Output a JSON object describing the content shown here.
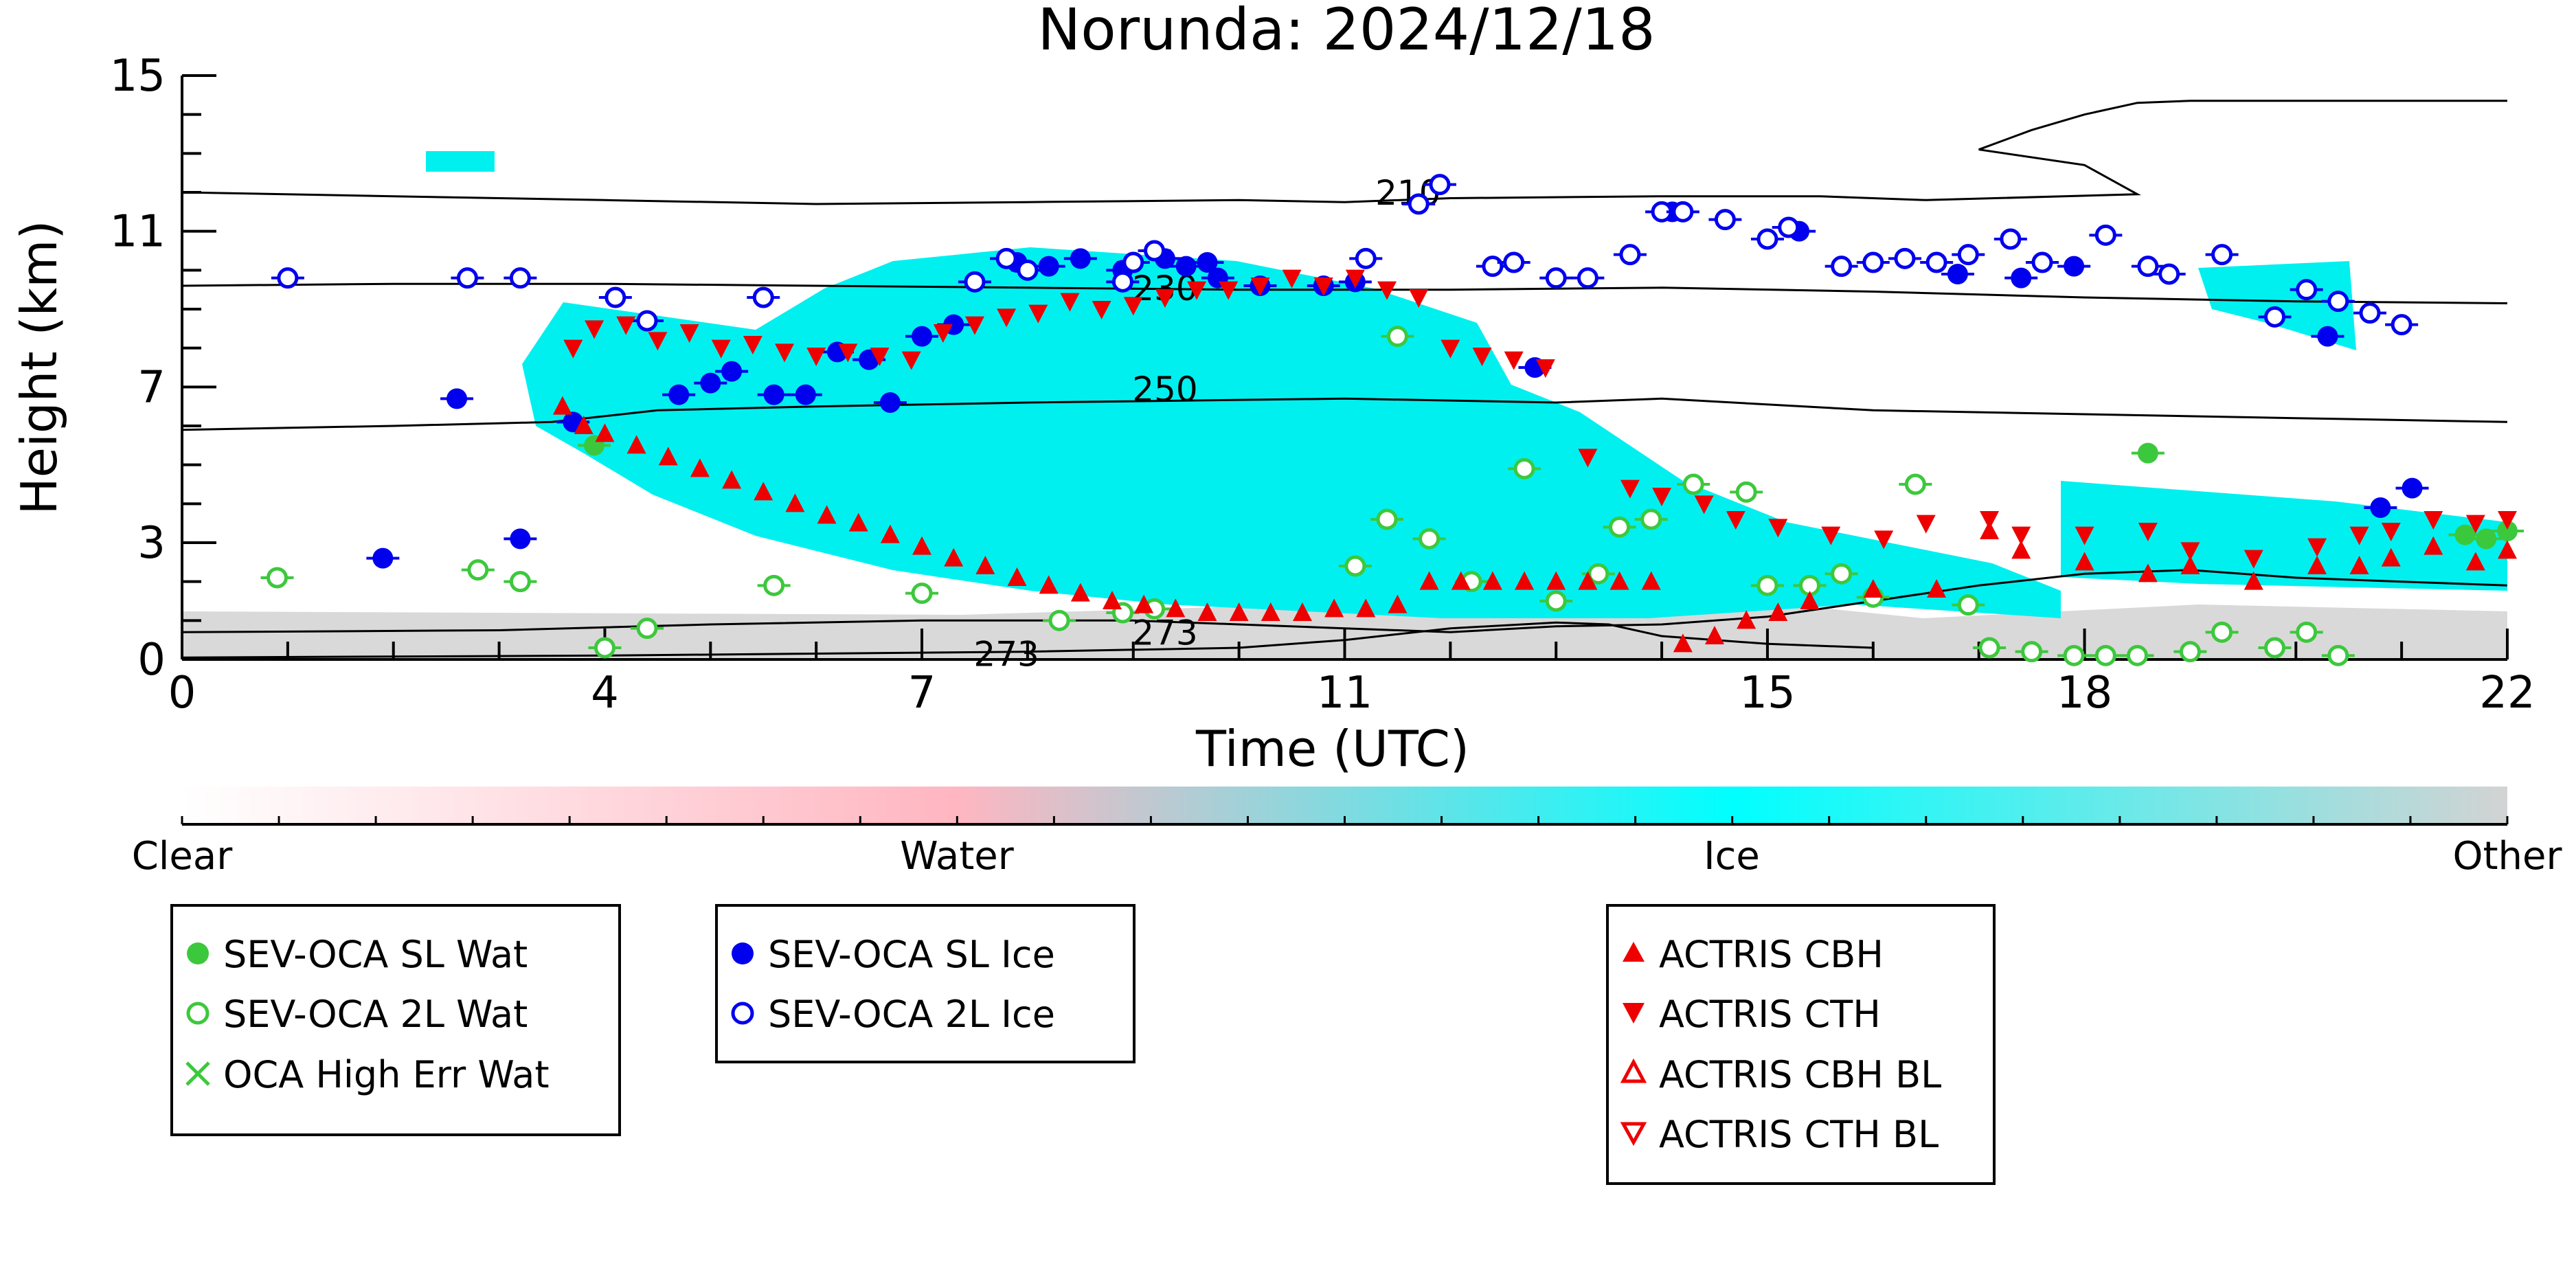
{
  "chart_data": {
    "type": "scatter",
    "title": "Norunda: 2024/12/18",
    "xlabel": "Time (UTC)",
    "ylabel": "Height (km)",
    "xlim": [
      0,
      22
    ],
    "ylim": [
      0,
      15
    ],
    "x_ticks": [
      0,
      4,
      7,
      11,
      15,
      18,
      22
    ],
    "y_ticks": [
      0,
      3,
      7,
      11,
      15
    ],
    "colorbar": {
      "labels": [
        "Clear",
        "Water",
        "Ice",
        "Other"
      ],
      "colors": [
        "#ffffff",
        "#ffb6c1",
        "#00ffff",
        "#d3d3d3"
      ]
    },
    "contours": [
      {
        "label": "210",
        "points": [
          [
            0,
            12.0
          ],
          [
            2,
            11.9
          ],
          [
            4,
            11.8
          ],
          [
            6,
            11.7
          ],
          [
            8,
            11.75
          ],
          [
            10,
            11.8
          ],
          [
            11,
            11.75
          ],
          [
            12,
            11.85
          ],
          [
            14,
            11.9
          ],
          [
            15.5,
            11.9
          ],
          [
            16.5,
            11.8
          ],
          [
            18.5,
            11.95
          ],
          [
            18,
            12.7
          ],
          [
            17,
            13.1
          ],
          [
            17.5,
            13.6
          ],
          [
            18,
            14.0
          ],
          [
            18.5,
            14.3
          ],
          [
            19,
            14.35
          ],
          [
            22,
            14.35
          ]
        ]
      },
      {
        "label": "230",
        "points": [
          [
            0,
            9.6
          ],
          [
            2,
            9.65
          ],
          [
            4,
            9.65
          ],
          [
            6,
            9.6
          ],
          [
            8,
            9.55
          ],
          [
            10,
            9.5
          ],
          [
            12,
            9.5
          ],
          [
            14,
            9.55
          ],
          [
            16,
            9.45
          ],
          [
            18,
            9.3
          ],
          [
            20,
            9.2
          ],
          [
            22,
            9.15
          ]
        ]
      },
      {
        "label": "250",
        "points": [
          [
            0,
            5.9
          ],
          [
            2,
            6.0
          ],
          [
            3.5,
            6.1
          ],
          [
            4.5,
            6.4
          ],
          [
            6,
            6.5
          ],
          [
            8,
            6.6
          ],
          [
            11,
            6.7
          ],
          [
            13,
            6.6
          ],
          [
            14,
            6.7
          ],
          [
            16,
            6.4
          ],
          [
            18,
            6.3
          ],
          [
            20,
            6.2
          ],
          [
            22,
            6.1
          ]
        ]
      },
      {
        "label": "273",
        "points": [
          [
            0,
            0.7
          ],
          [
            3,
            0.75
          ],
          [
            5,
            0.9
          ],
          [
            7,
            1.0
          ],
          [
            9,
            1.0
          ],
          [
            10,
            0.9
          ],
          [
            11,
            0.8
          ],
          [
            12,
            0.7
          ],
          [
            13,
            0.85
          ],
          [
            14,
            0.9
          ],
          [
            15,
            1.1
          ],
          [
            16,
            1.5
          ],
          [
            17,
            1.9
          ],
          [
            18,
            2.2
          ],
          [
            19,
            2.3
          ],
          [
            20,
            2.1
          ],
          [
            21,
            2.0
          ],
          [
            22,
            1.9
          ]
        ]
      },
      {
        "label": "273",
        "points": [
          [
            0,
            0.05
          ],
          [
            4,
            0.1
          ],
          [
            6,
            0.15
          ],
          [
            8,
            0.2
          ],
          [
            10,
            0.3
          ],
          [
            11,
            0.5
          ],
          [
            12,
            0.8
          ],
          [
            13,
            0.95
          ],
          [
            13.5,
            0.9
          ],
          [
            14,
            0.6
          ],
          [
            15,
            0.4
          ],
          [
            16,
            0.3
          ]
        ]
      }
    ],
    "series": [
      {
        "name": "SEV-OCA SL Wat",
        "marker": "filled-circle",
        "color": "#3cc83c",
        "points": [
          [
            3.9,
            5.5
          ],
          [
            18.6,
            5.3
          ],
          [
            21.6,
            3.2
          ],
          [
            21.8,
            3.1
          ],
          [
            22.0,
            3.3
          ]
        ]
      },
      {
        "name": "SEV-OCA 2L Wat",
        "marker": "open-circle",
        "color": "#3cc83c",
        "points": [
          [
            0.9,
            2.1
          ],
          [
            2.8,
            2.3
          ],
          [
            3.2,
            2.0
          ],
          [
            4.0,
            0.3
          ],
          [
            4.4,
            0.8
          ],
          [
            5.6,
            1.9
          ],
          [
            7.0,
            1.7
          ],
          [
            8.3,
            1.0
          ],
          [
            8.9,
            1.2
          ],
          [
            9.2,
            1.3
          ],
          [
            11.1,
            2.4
          ],
          [
            11.4,
            3.6
          ],
          [
            11.5,
            8.3
          ],
          [
            11.8,
            3.1
          ],
          [
            12.2,
            2.0
          ],
          [
            12.7,
            4.9
          ],
          [
            13.0,
            1.5
          ],
          [
            13.4,
            2.2
          ],
          [
            13.6,
            3.4
          ],
          [
            13.9,
            3.6
          ],
          [
            14.3,
            4.5
          ],
          [
            14.8,
            4.3
          ],
          [
            15.0,
            1.9
          ],
          [
            15.4,
            1.9
          ],
          [
            15.7,
            2.2
          ],
          [
            16.0,
            1.6
          ],
          [
            16.4,
            4.5
          ],
          [
            16.9,
            1.4
          ],
          [
            17.1,
            0.3
          ],
          [
            17.5,
            0.2
          ],
          [
            17.9,
            0.1
          ],
          [
            18.2,
            0.1
          ],
          [
            18.5,
            0.1
          ],
          [
            19.0,
            0.2
          ],
          [
            19.3,
            0.7
          ],
          [
            19.8,
            0.3
          ],
          [
            20.1,
            0.7
          ],
          [
            20.4,
            0.1
          ]
        ]
      },
      {
        "name": "OCA High Err Wat",
        "marker": "x",
        "color": "#3cc83c",
        "points": []
      },
      {
        "name": "SEV-OCA SL Ice",
        "marker": "filled-circle",
        "color": "#0000ee",
        "points": [
          [
            1.9,
            2.6
          ],
          [
            2.6,
            6.7
          ],
          [
            3.2,
            3.1
          ],
          [
            3.7,
            6.1
          ],
          [
            4.7,
            6.8
          ],
          [
            5.0,
            7.1
          ],
          [
            5.2,
            7.4
          ],
          [
            5.6,
            6.8
          ],
          [
            5.9,
            6.8
          ],
          [
            6.2,
            7.9
          ],
          [
            6.5,
            7.7
          ],
          [
            6.7,
            6.6
          ],
          [
            7.0,
            8.3
          ],
          [
            7.3,
            8.6
          ],
          [
            7.9,
            10.2
          ],
          [
            8.2,
            10.1
          ],
          [
            8.5,
            10.3
          ],
          [
            8.9,
            10.0
          ],
          [
            9.3,
            10.3
          ],
          [
            9.5,
            10.1
          ],
          [
            9.7,
            10.2
          ],
          [
            9.8,
            9.8
          ],
          [
            10.2,
            9.6
          ],
          [
            10.8,
            9.6
          ],
          [
            11.1,
            9.7
          ],
          [
            12.8,
            7.5
          ],
          [
            14.1,
            11.5
          ],
          [
            15.3,
            11.0
          ],
          [
            16.8,
            9.9
          ],
          [
            17.4,
            9.8
          ],
          [
            17.9,
            10.1
          ],
          [
            20.3,
            8.3
          ],
          [
            20.8,
            3.9
          ],
          [
            21.1,
            4.4
          ]
        ]
      },
      {
        "name": "SEV-OCA 2L Ice",
        "marker": "open-circle",
        "color": "#0000ee",
        "points": [
          [
            1.0,
            9.8
          ],
          [
            2.7,
            9.8
          ],
          [
            3.2,
            9.8
          ],
          [
            4.1,
            9.3
          ],
          [
            4.4,
            8.7
          ],
          [
            5.5,
            9.3
          ],
          [
            7.5,
            9.7
          ],
          [
            7.8,
            10.3
          ],
          [
            8.0,
            10.0
          ],
          [
            8.9,
            9.7
          ],
          [
            9.0,
            10.2
          ],
          [
            9.2,
            10.5
          ],
          [
            11.2,
            10.3
          ],
          [
            11.7,
            11.7
          ],
          [
            11.9,
            12.2
          ],
          [
            12.4,
            10.1
          ],
          [
            12.6,
            10.2
          ],
          [
            13.0,
            9.8
          ],
          [
            13.3,
            9.8
          ],
          [
            13.7,
            10.4
          ],
          [
            14.0,
            11.5
          ],
          [
            14.2,
            11.5
          ],
          [
            14.6,
            11.3
          ],
          [
            15.0,
            10.8
          ],
          [
            15.2,
            11.1
          ],
          [
            15.7,
            10.1
          ],
          [
            16.0,
            10.2
          ],
          [
            16.3,
            10.3
          ],
          [
            16.6,
            10.2
          ],
          [
            16.9,
            10.4
          ],
          [
            17.3,
            10.8
          ],
          [
            17.6,
            10.2
          ],
          [
            18.2,
            10.9
          ],
          [
            18.6,
            10.1
          ],
          [
            18.8,
            9.9
          ],
          [
            19.3,
            10.4
          ],
          [
            19.8,
            8.8
          ],
          [
            20.1,
            9.5
          ],
          [
            20.4,
            9.2
          ],
          [
            20.7,
            8.9
          ],
          [
            21.0,
            8.6
          ]
        ]
      },
      {
        "name": "ACTRIS CBH",
        "marker": "triangle-up",
        "color": "#ee0000",
        "points": [
          [
            3.6,
            6.5
          ],
          [
            3.8,
            6.0
          ],
          [
            4.0,
            5.8
          ],
          [
            4.3,
            5.5
          ],
          [
            4.6,
            5.2
          ],
          [
            4.9,
            4.9
          ],
          [
            5.2,
            4.6
          ],
          [
            5.5,
            4.3
          ],
          [
            5.8,
            4.0
          ],
          [
            6.1,
            3.7
          ],
          [
            6.4,
            3.5
          ],
          [
            6.7,
            3.2
          ],
          [
            7.0,
            2.9
          ],
          [
            7.3,
            2.6
          ],
          [
            7.6,
            2.4
          ],
          [
            7.9,
            2.1
          ],
          [
            8.2,
            1.9
          ],
          [
            8.5,
            1.7
          ],
          [
            8.8,
            1.5
          ],
          [
            9.1,
            1.4
          ],
          [
            9.4,
            1.3
          ],
          [
            9.7,
            1.2
          ],
          [
            10.0,
            1.2
          ],
          [
            10.3,
            1.2
          ],
          [
            10.6,
            1.2
          ],
          [
            10.9,
            1.3
          ],
          [
            11.2,
            1.3
          ],
          [
            11.5,
            1.4
          ],
          [
            11.8,
            2.0
          ],
          [
            12.1,
            2.0
          ],
          [
            12.4,
            2.0
          ],
          [
            12.7,
            2.0
          ],
          [
            13.0,
            2.0
          ],
          [
            13.3,
            2.0
          ],
          [
            13.6,
            2.0
          ],
          [
            13.9,
            2.0
          ],
          [
            14.2,
            0.4
          ],
          [
            14.5,
            0.6
          ],
          [
            14.8,
            1.0
          ],
          [
            15.1,
            1.2
          ],
          [
            15.4,
            1.5
          ],
          [
            16.0,
            1.8
          ],
          [
            16.6,
            1.8
          ],
          [
            17.1,
            3.3
          ],
          [
            17.4,
            2.8
          ],
          [
            18.0,
            2.5
          ],
          [
            18.6,
            2.2
          ],
          [
            19.0,
            2.4
          ],
          [
            19.6,
            2.0
          ],
          [
            20.2,
            2.4
          ],
          [
            20.6,
            2.4
          ],
          [
            20.9,
            2.6
          ],
          [
            21.3,
            2.9
          ],
          [
            21.7,
            2.5
          ],
          [
            22.0,
            2.8
          ]
        ]
      },
      {
        "name": "ACTRIS CTH",
        "marker": "triangle-down",
        "color": "#ee0000",
        "points": [
          [
            3.7,
            8.0
          ],
          [
            3.9,
            8.5
          ],
          [
            4.2,
            8.6
          ],
          [
            4.5,
            8.2
          ],
          [
            4.8,
            8.4
          ],
          [
            5.1,
            8.0
          ],
          [
            5.4,
            8.1
          ],
          [
            5.7,
            7.9
          ],
          [
            6.0,
            7.8
          ],
          [
            6.3,
            7.9
          ],
          [
            6.6,
            7.8
          ],
          [
            6.9,
            7.7
          ],
          [
            7.2,
            8.4
          ],
          [
            7.5,
            8.6
          ],
          [
            7.8,
            8.8
          ],
          [
            8.1,
            8.9
          ],
          [
            8.4,
            9.2
          ],
          [
            8.7,
            9.0
          ],
          [
            9.0,
            9.1
          ],
          [
            9.3,
            9.3
          ],
          [
            9.6,
            9.5
          ],
          [
            9.9,
            9.5
          ],
          [
            10.2,
            9.6
          ],
          [
            10.5,
            9.8
          ],
          [
            10.8,
            9.6
          ],
          [
            11.1,
            9.8
          ],
          [
            11.4,
            9.5
          ],
          [
            11.7,
            9.3
          ],
          [
            12.0,
            8.0
          ],
          [
            12.3,
            7.8
          ],
          [
            12.6,
            7.7
          ],
          [
            12.9,
            7.5
          ],
          [
            13.3,
            5.2
          ],
          [
            13.7,
            4.4
          ],
          [
            14.0,
            4.2
          ],
          [
            14.4,
            4.0
          ],
          [
            14.7,
            3.6
          ],
          [
            15.1,
            3.4
          ],
          [
            15.6,
            3.2
          ],
          [
            16.1,
            3.1
          ],
          [
            16.5,
            3.5
          ],
          [
            17.1,
            3.6
          ],
          [
            17.4,
            3.2
          ],
          [
            18.0,
            3.2
          ],
          [
            18.6,
            3.3
          ],
          [
            19.0,
            2.8
          ],
          [
            19.6,
            2.6
          ],
          [
            20.2,
            2.9
          ],
          [
            20.6,
            3.2
          ],
          [
            20.9,
            3.3
          ],
          [
            21.3,
            3.6
          ],
          [
            21.7,
            3.5
          ],
          [
            22.0,
            3.6
          ]
        ]
      },
      {
        "name": "ACTRIS CBH BL",
        "marker": "open-triangle-up",
        "color": "#ee0000",
        "points": []
      },
      {
        "name": "ACTRIS CTH BL",
        "marker": "open-triangle-down",
        "color": "#ee0000",
        "points": []
      }
    ]
  }
}
